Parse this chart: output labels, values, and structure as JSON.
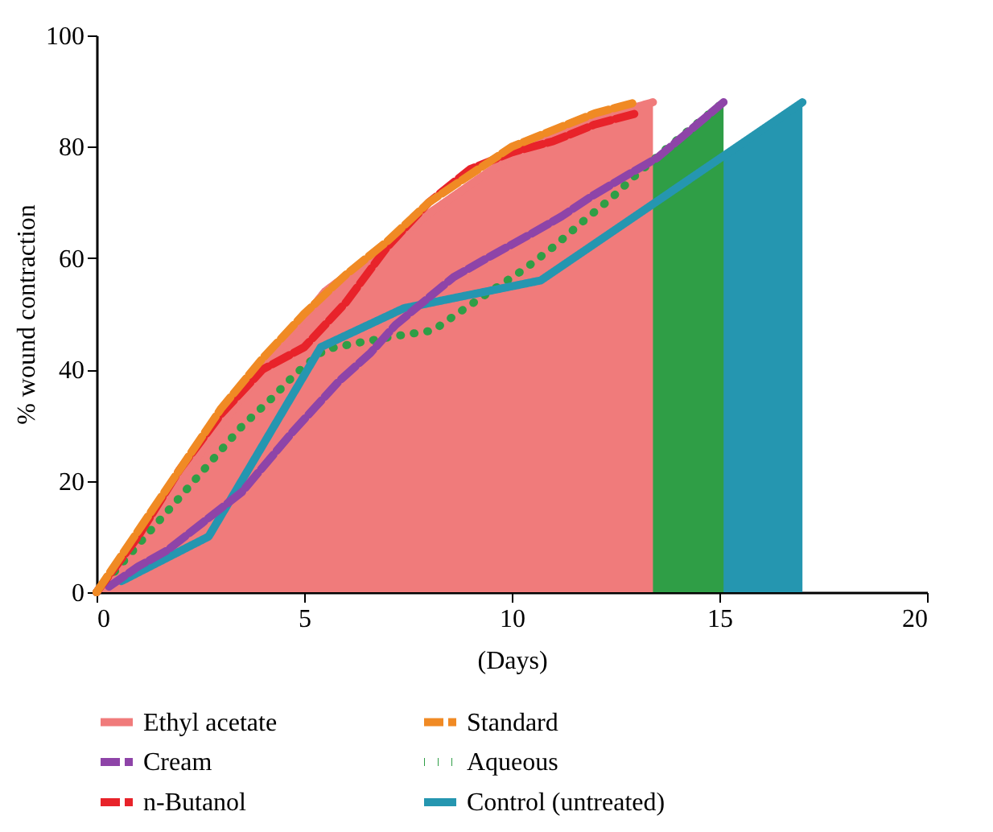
{
  "chart_data": {
    "type": "line",
    "xlabel": "(Days)",
    "ylabel": "% wound contraction",
    "xlim": [
      0,
      20
    ],
    "xticks": [
      0,
      5,
      10,
      15,
      20
    ],
    "ylim": [
      0,
      100
    ],
    "yticks": [
      0,
      20,
      40,
      60,
      80,
      100
    ],
    "grid": false,
    "legend": "bottom",
    "marker": "none",
    "series": [
      {
        "name": "Ethyl acetate",
        "type": "area",
        "color": "#f07b7b",
        "line_style": "solid",
        "x": [
          0,
          1,
          2,
          3,
          4,
          5.5,
          8,
          10.5,
          12,
          13.4
        ],
        "values": [
          0,
          10,
          20,
          30,
          40,
          54,
          68,
          81,
          85,
          88
        ]
      },
      {
        "name": "Cream",
        "type": "line",
        "color": "#8e44a8",
        "line_style": "dashed",
        "x": [
          0.3,
          1,
          1.7,
          3.5,
          4.7,
          5.85,
          6.6,
          7.2,
          8.6,
          9.5,
          10.5,
          11.2,
          11.9,
          12.8,
          13.5,
          14.3,
          15.1
        ],
        "values": [
          1,
          4.6,
          7.5,
          18,
          28.6,
          38,
          43,
          48,
          56.6,
          60.4,
          64.5,
          67.5,
          71,
          75,
          78,
          83,
          88
        ]
      },
      {
        "name": "n-Butanol",
        "type": "line",
        "color": "#e8232a",
        "line_style": "dashed",
        "x": [
          0,
          1,
          2,
          3,
          4,
          5,
          6,
          7,
          8,
          9,
          10,
          11,
          12,
          13
        ],
        "values": [
          0,
          10,
          22,
          32,
          40,
          44,
          52,
          62,
          70,
          76,
          79,
          81,
          84,
          86
        ]
      },
      {
        "name": "Standard",
        "type": "line",
        "color": "#f08a24",
        "line_style": "dashed",
        "x": [
          0,
          1,
          2,
          3,
          4,
          5,
          6,
          7,
          8,
          9,
          10,
          11,
          12,
          13
        ],
        "values": [
          0,
          11,
          22,
          33,
          42,
          50,
          57,
          63,
          70,
          75,
          80,
          83,
          86,
          88
        ]
      },
      {
        "name": "Aqueous",
        "type": "area",
        "color": "#2f9e46",
        "line_style": "dotted",
        "x": [
          0,
          3.5,
          4.2,
          4.8,
          5.5,
          6.3,
          7.2,
          8.1,
          8.8,
          9.6,
          10.3,
          11,
          11.7,
          12.4,
          13,
          13.7,
          14.4,
          15.1
        ],
        "values": [
          0,
          29.8,
          34.7,
          39.3,
          43.6,
          44.8,
          46,
          47,
          50.6,
          54.6,
          58,
          62,
          66.5,
          70.8,
          75,
          79.5,
          83.8,
          88
        ]
      },
      {
        "name": "Control (untreated)",
        "type": "area",
        "color": "#2596b0",
        "line_style": "solid",
        "x": [
          0.6,
          2.7,
          5.4,
          7.4,
          10.7,
          17
        ],
        "values": [
          2,
          10,
          44,
          51,
          56,
          88
        ]
      }
    ]
  }
}
